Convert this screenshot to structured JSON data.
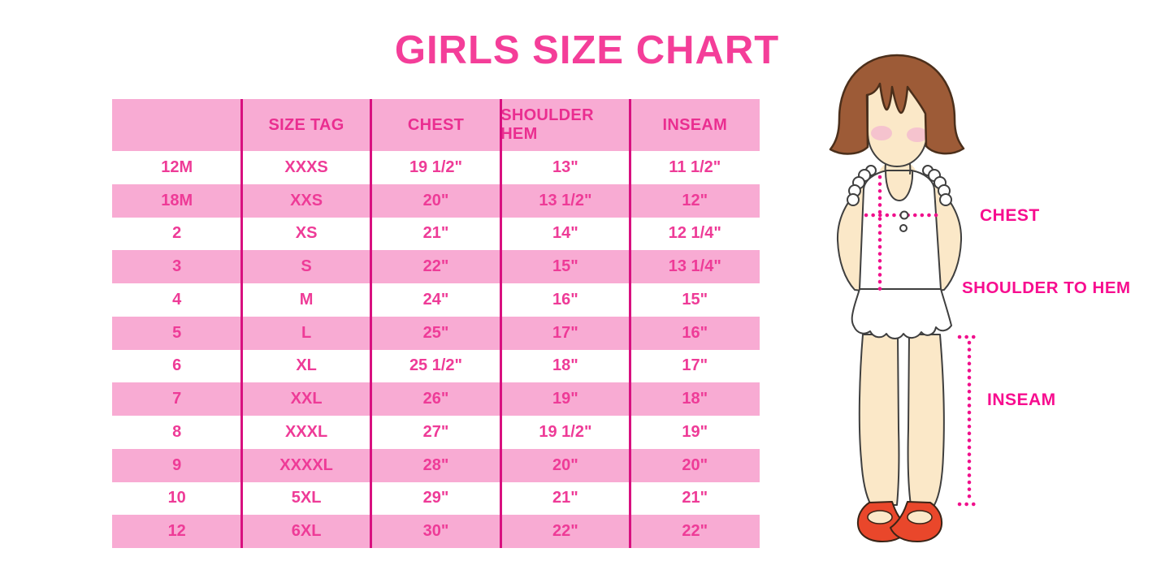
{
  "title": "GIRLS SIZE CHART",
  "colors": {
    "title_pink": "#F43E99",
    "row_band_pink": "#F8ABD3",
    "table_text_pink": "#EE3B97",
    "grid_line_magenta": "#D8107F",
    "measure_label_magenta": "#F70D8F",
    "hair_brown": "#9D5B37",
    "skin_tone": "#FBE8C8",
    "blush_pink": "#F5C3CE",
    "shoe_red": "#E9472B"
  },
  "table": {
    "columns": [
      "",
      "SIZE TAG",
      "CHEST",
      "SHOULDER HEM",
      "INSEAM"
    ],
    "rows": [
      [
        "12M",
        "XXXS",
        "19 1/2\"",
        "13\"",
        "11 1/2\""
      ],
      [
        "18M",
        "XXS",
        "20\"",
        "13 1/2\"",
        "12\""
      ],
      [
        "2",
        "XS",
        "21\"",
        "14\"",
        "12 1/4\""
      ],
      [
        "3",
        "S",
        "22\"",
        "15\"",
        "13 1/4\""
      ],
      [
        "4",
        "M",
        "24\"",
        "16\"",
        "15\""
      ],
      [
        "5",
        "L",
        "25\"",
        "17\"",
        "16\""
      ],
      [
        "6",
        "XL",
        "25 1/2\"",
        "18\"",
        "17\""
      ],
      [
        "7",
        "XXL",
        "26\"",
        "19\"",
        "18\""
      ],
      [
        "8",
        "XXXL",
        "27\"",
        "19 1/2\"",
        "19\""
      ],
      [
        "9",
        "XXXXL",
        "28\"",
        "20\"",
        "20\""
      ],
      [
        "10",
        "5XL",
        "29\"",
        "21\"",
        "21\""
      ],
      [
        "12",
        "6XL",
        "30\"",
        "22\"",
        "22\""
      ]
    ]
  },
  "figure": {
    "labels": {
      "chest": "CHEST",
      "shoulder_to_hem": "SHOULDER TO HEM",
      "inseam": "INSEAM"
    }
  }
}
